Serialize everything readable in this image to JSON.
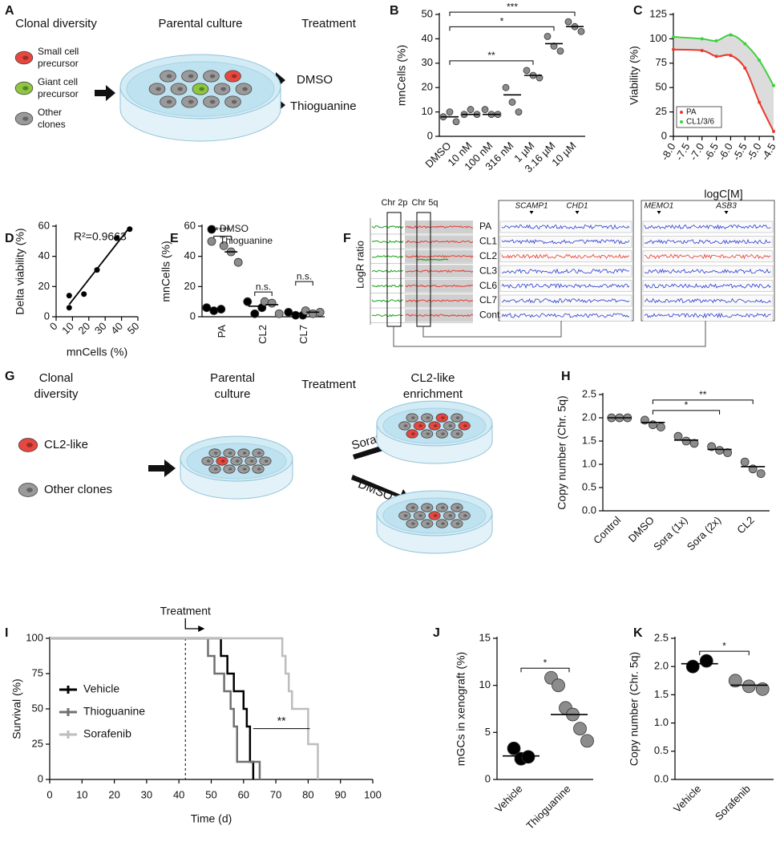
{
  "panel_labels": [
    "A",
    "B",
    "C",
    "D",
    "E",
    "F",
    "G",
    "H",
    "I",
    "J",
    "K"
  ],
  "diagram_a": {
    "headers": [
      "Clonal diversity",
      "Parental culture",
      "Treatment"
    ],
    "legend": [
      {
        "lines": [
          "Small  cell",
          "precursor"
        ],
        "color": "#e8473f"
      },
      {
        "lines": [
          "Giant cell",
          "precursor"
        ],
        "color": "#8dc63f"
      },
      {
        "lines": [
          "Other",
          "clones"
        ],
        "color": "#9a9a9a"
      }
    ],
    "treatments": [
      "DMSO",
      "Thioguanine"
    ]
  },
  "diagram_f": {
    "regions": [
      "Chr 2p",
      "Chr 5q"
    ],
    "ylabel": "LogR ratio",
    "genes": [
      "SCAMP1",
      "CHD1",
      "MEMO1",
      "ASB3"
    ],
    "rows": [
      {
        "label": "PA",
        "color": "#2b3ccf"
      },
      {
        "label": "CL1",
        "color": "#2b3ccf"
      },
      {
        "label": "CL2",
        "color": "#e8392f"
      },
      {
        "label": "CL3",
        "color": "#2b3ccf"
      },
      {
        "label": "CL6",
        "color": "#2b3ccf"
      },
      {
        "label": "CL7",
        "color": "#2b3ccf"
      },
      {
        "label": "Control",
        "color": "#2b3ccf"
      }
    ]
  },
  "diagram_g": {
    "headers": [
      [
        "Clonal",
        "diversity"
      ],
      [
        "Parental",
        "culture"
      ],
      [
        "Treatment"
      ],
      [
        "CL2-like",
        "enrichment"
      ]
    ],
    "legend": [
      {
        "label": "CL2-like",
        "color": "#e8473f"
      },
      {
        "label": "Other clones",
        "color": "#9a9a9a"
      }
    ],
    "treatments": [
      "Sorafenib",
      "DMSO"
    ]
  },
  "chart_data": [
    {
      "type": "dot",
      "ylabel": "mnCells (%)",
      "categories": [
        "DMSO",
        "10 nM",
        "100 nM",
        "316 nM",
        "1 µM",
        "3.16 µM",
        "10 µM"
      ],
      "ylim": [
        0,
        50
      ],
      "yticks": [
        0,
        10,
        20,
        30,
        40,
        50
      ],
      "series": [
        {
          "color": "#8c8c8c",
          "values": [
            [
              8,
              10,
              6
            ],
            [
              9,
              11,
              9
            ],
            [
              11,
              9,
              9
            ],
            [
              20,
              14,
              10
            ],
            [
              27,
              25,
              24
            ],
            [
              41,
              37,
              35
            ],
            [
              47,
              45,
              43
            ]
          ],
          "means": [
            8,
            9,
            9,
            17,
            25,
            38,
            45
          ]
        }
      ],
      "significance": [
        {
          "from": "DMSO",
          "to": "1 µM",
          "label": "**"
        },
        {
          "from": "DMSO",
          "to": "3.16 µM",
          "label": "*"
        },
        {
          "from": "DMSO",
          "to": "10 µM",
          "label": "***"
        }
      ]
    },
    {
      "type": "line",
      "xlabel": "logC[M]",
      "ylabel": "Viability (%)",
      "x": [
        -8,
        -7,
        -6.5,
        -6,
        -5.5,
        -5,
        -4.5
      ],
      "xlim": [
        -8,
        -4.5
      ],
      "xticks": [
        {
          "value": -8,
          "label": "-8.0"
        },
        -7.5,
        {
          "value": -7,
          "label": "-7.0"
        },
        -6.5,
        {
          "value": -6,
          "label": "-6.0"
        },
        -5.5,
        {
          "value": -5,
          "label": "-5.0"
        },
        -4.5
      ],
      "ylim": [
        0,
        125
      ],
      "yticks": [
        0,
        25,
        50,
        75,
        100,
        125
      ],
      "legend": "lower left",
      "series": [
        {
          "name": "PA",
          "color": "#e8392f",
          "values": [
            89,
            88,
            82,
            83,
            70,
            35,
            5
          ]
        },
        {
          "name": "CL1/3/6",
          "color": "#3fcf3f",
          "values": [
            102,
            100,
            98,
            104,
            95,
            78,
            52
          ]
        }
      ]
    },
    {
      "type": "scatter",
      "xlabel": "mnCells (%)",
      "ylabel": "Delta viability (%)",
      "annotation": "R²=0.9663",
      "fit": "linear",
      "color": "#000000",
      "x": [
        8,
        8,
        17,
        25,
        37,
        45
      ],
      "values": [
        14,
        6,
        15,
        31,
        52,
        58
      ],
      "xlim": [
        0,
        50
      ],
      "xticks": [
        0,
        10,
        20,
        30,
        40,
        50
      ],
      "ylim": [
        0,
        60
      ],
      "yticks": [
        0,
        20,
        40,
        60
      ]
    },
    {
      "type": "dot",
      "ylabel": "mnCells (%)",
      "categories": [
        "PA",
        "CL2",
        "CL7"
      ],
      "ylim": [
        0,
        60
      ],
      "yticks": [
        0,
        20,
        40,
        60
      ],
      "legend": "upper left",
      "series": [
        {
          "name": "DMSO",
          "color": "#000000",
          "values": [
            [
              6,
              4,
              5
            ],
            [
              10,
              2,
              6
            ],
            [
              3,
              1,
              1
            ]
          ],
          "means": [
            5,
            7,
            2
          ]
        },
        {
          "name": "Thioguanine",
          "color": "#8c8c8c",
          "values": [
            [
              47,
              43,
              36
            ],
            [
              10,
              9,
              2
            ],
            [
              4,
              2,
              3
            ]
          ],
          "means": [
            43,
            8,
            3
          ]
        }
      ],
      "significance": [
        {
          "category": "PA",
          "label": "****"
        },
        {
          "category": "CL2",
          "label": "n.s."
        },
        {
          "category": "CL7",
          "label": "n.s."
        }
      ]
    },
    {
      "type": "dot",
      "ylabel": "Copy number (Chr. 5q)",
      "categories": [
        "Control",
        "DMSO",
        "Sora (1x)",
        "Sora (2x)",
        "CL2"
      ],
      "ylim": [
        0,
        2.5
      ],
      "yticks": [
        {
          "value": 0,
          "label": "0.0"
        },
        0.5,
        {
          "value": 1,
          "label": "1.0"
        },
        1.5,
        {
          "value": 2,
          "label": "2.0"
        },
        2.5
      ],
      "series": [
        {
          "color": "#8c8c8c",
          "values": [
            [
              2,
              2,
              2
            ],
            [
              1.95,
              1.85,
              1.8
            ],
            [
              1.6,
              1.5,
              1.45
            ],
            [
              1.38,
              1.3,
              1.25
            ],
            [
              1.05,
              0.9,
              0.8
            ]
          ],
          "means": [
            2,
            1.9,
            1.52,
            1.32,
            0.95
          ]
        }
      ],
      "significance": [
        {
          "from": "DMSO",
          "to": "Sora (2x)",
          "label": "*"
        },
        {
          "from": "DMSO",
          "to": "CL2",
          "label": "**"
        }
      ]
    },
    {
      "type": "step",
      "xlabel": "Time (d)",
      "ylabel": "Survival (%)",
      "xlim": [
        0,
        100
      ],
      "xticks": [
        0,
        10,
        20,
        30,
        40,
        50,
        60,
        70,
        80,
        90,
        100
      ],
      "ylim": [
        0,
        100
      ],
      "yticks": [
        0,
        25,
        50,
        75,
        100
      ],
      "legend": "lower left",
      "annotations": [
        {
          "text": "Treatment",
          "x": 42
        }
      ],
      "series": [
        {
          "name": "Vehicle",
          "color": "#000000",
          "x": [
            0,
            53,
            55,
            57,
            60,
            61,
            62,
            63
          ],
          "values": [
            100,
            87.5,
            75,
            62.5,
            50,
            37.5,
            12.5,
            0
          ]
        },
        {
          "name": "Thioguanine",
          "color": "#707070",
          "x": [
            0,
            49,
            51,
            54,
            56,
            57,
            58,
            65
          ],
          "values": [
            100,
            87.5,
            75,
            62.5,
            50,
            37.5,
            12.5,
            0
          ]
        },
        {
          "name": "Sorafenib",
          "color": "#bdbdbd",
          "x": [
            0,
            72,
            73,
            74,
            75,
            80,
            83
          ],
          "values": [
            100,
            87.5,
            75,
            62.5,
            50,
            25,
            0
          ]
        }
      ],
      "significance": [
        {
          "from": "Vehicle",
          "to": "Sorafenib",
          "label": "**"
        }
      ]
    },
    {
      "type": "dot",
      "ylabel": "mGCs in xenograft (%)",
      "categories": [
        "Vehicle",
        "Thioguanine"
      ],
      "ylim": [
        0,
        15
      ],
      "yticks": [
        0,
        5,
        10,
        15
      ],
      "series": [
        {
          "color": "#000000",
          "values": [
            [
              3.3,
              2.2,
              2.4
            ],
            null
          ],
          "means": [
            2.5,
            null
          ]
        },
        {
          "color": "#8c8c8c",
          "values": [
            null,
            [
              10.8,
              10,
              7.6,
              6.9,
              5.4,
              4.1
            ]
          ],
          "means": [
            null,
            6.9
          ]
        }
      ],
      "significance": [
        {
          "from": "Vehicle",
          "to": "Thioguanine",
          "label": "*"
        }
      ]
    },
    {
      "type": "dot",
      "ylabel": "Copy number (Chr. 5q)",
      "categories": [
        "Vehicle",
        "Sorafenib"
      ],
      "ylim": [
        0,
        2.5
      ],
      "yticks": [
        {
          "value": 0,
          "label": "0.0"
        },
        0.5,
        {
          "value": 1,
          "label": "1.0"
        },
        1.5,
        {
          "value": 2,
          "label": "2.0"
        },
        2.5
      ],
      "series": [
        {
          "color": "#000000",
          "values": [
            [
              2,
              2.1
            ],
            null
          ],
          "means": [
            2.05,
            null
          ]
        },
        {
          "color": "#8c8c8c",
          "values": [
            null,
            [
              1.75,
              1.65,
              1.6
            ]
          ],
          "means": [
            null,
            1.67
          ]
        }
      ],
      "significance": [
        {
          "from": "Vehicle",
          "to": "Sorafenib",
          "label": "*"
        }
      ]
    }
  ]
}
